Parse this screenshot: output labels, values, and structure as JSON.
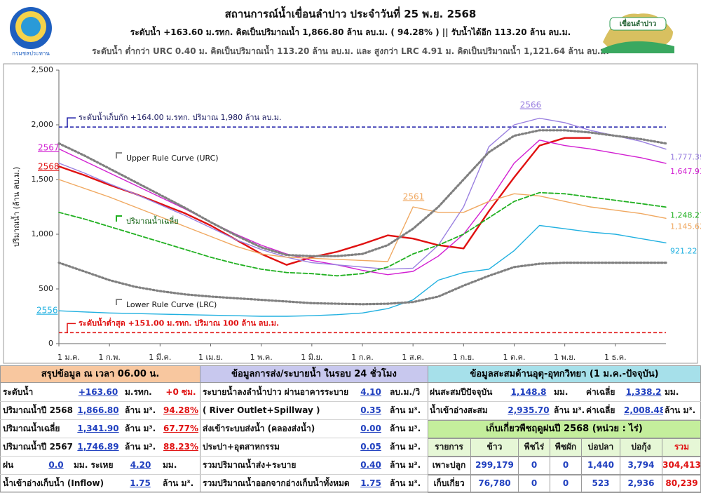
{
  "header": {
    "title": "สถานการณ์น้ำเขื่อนลำปาว ประจำวันที่ 25 พ.ย. 2568",
    "line1": "ระดับน้ำ +163.60 ม.รทก.  คิดเป็นปริมาณน้ำ 1,866.80 ล้าน ลบ.ม. ( 94.28% )  || รับน้ำได้อีก 113.20 ล้าน ลบ.ม.",
    "line2": "ระดับน้ำ ต่ำกว่า URC 0.40 ม. คิดเป็นปริมาณน้ำ 113.20 ล้าน ลบ.ม. และ สูงกว่า LRC 4.91 ม. คิดเป็นปริมาณน้ำ 1,121.64 ล้าน ลบ.ม.",
    "logo_left": "กรมชลประทาน",
    "logo_right": "เขื่อนลำปาว"
  },
  "chart_data": {
    "type": "line",
    "ylabel": "ปริมาณน้ำ (ล้าน ลบ.ม.)",
    "categories": [
      "1 ม.ค.",
      null,
      "1 ก.พ.",
      null,
      "1 มี.ค.",
      null,
      "1 เม.ย.",
      null,
      "1 พ.ค.",
      null,
      "1 มิ.ย.",
      null,
      "1 ก.ค.",
      null,
      "1 ส.ค.",
      null,
      "1 ก.ย.",
      null,
      "1 ต.ค.",
      null,
      "1 พ.ย.",
      null,
      "1 ธ.ค.",
      null,
      null
    ],
    "ylim": [
      0,
      2500
    ],
    "yticks": [
      0,
      500,
      {
        "value": 1000,
        "label": "1,000"
      },
      {
        "value": 1500,
        "label": "1,500"
      },
      {
        "value": 2000,
        "label": "2,000"
      },
      {
        "value": 2500,
        "label": "2,500"
      }
    ],
    "ref_lines": [
      {
        "label": "ระดับน้ำเก็บกัก +164.00 ม.รทก. ปริมาณ 1,980 ล้าน ลบ.ม.",
        "value": 1980,
        "color": "#1a1aa8"
      },
      {
        "label": "ระดับน้ำต่ำสุด +151.00 ม.รทก. ปริมาณ 100 ล้าน ลบ.ม.",
        "value": 100,
        "color": "#e01010"
      }
    ],
    "series": [
      {
        "name": "2568",
        "color": "#e01010",
        "style": "solid",
        "values": [
          1620,
          1540,
          1450,
          1370,
          1280,
          1190,
          1080,
          950,
          820,
          720,
          790,
          840,
          910,
          990,
          960,
          900,
          870,
          1210,
          1520,
          1810,
          1880,
          1880,
          null,
          null,
          null
        ]
      },
      {
        "name": "2567",
        "color": "#d21fd2",
        "style": "solid",
        "end_label": "1,647.93",
        "values": [
          1780,
          1670,
          1560,
          1450,
          1340,
          1230,
          1110,
          1000,
          900,
          820,
          760,
          720,
          670,
          630,
          660,
          800,
          1000,
          1300,
          1650,
          1860,
          1810,
          1780,
          1740,
          1700,
          1647.93
        ]
      },
      {
        "name": "2566",
        "color": "#9a80e0",
        "style": "solid",
        "end_label": "1,777.39",
        "values": [
          1650,
          1560,
          1460,
          1370,
          1270,
          1170,
          1060,
          950,
          860,
          790,
          740,
          720,
          700,
          680,
          690,
          900,
          1250,
          1800,
          2000,
          2060,
          2020,
          1950,
          1900,
          1850,
          1777.39
        ]
      },
      {
        "name": "2561",
        "color": "#f0a860",
        "style": "solid",
        "end_label": "1,145.62",
        "values": [
          1500,
          1420,
          1340,
          1250,
          1160,
          1070,
          980,
          890,
          820,
          790,
          780,
          770,
          760,
          750,
          1250,
          1200,
          1200,
          1300,
          1370,
          1350,
          1300,
          1250,
          1220,
          1190,
          1145.62
        ]
      },
      {
        "name": "2556",
        "color": "#20b0e0",
        "style": "solid",
        "end_label": "921.22",
        "values": [
          300,
          290,
          280,
          275,
          270,
          265,
          260,
          255,
          250,
          250,
          255,
          265,
          280,
          320,
          400,
          580,
          650,
          680,
          850,
          1080,
          1050,
          1020,
          1000,
          960,
          921.22
        ]
      },
      {
        "name": "ปริมาณน้ำเฉลี่ย",
        "color": "#20b020",
        "style": "dashed",
        "end_label": "1,248.27",
        "values": [
          1200,
          1140,
          1070,
          1000,
          930,
          860,
          790,
          730,
          680,
          650,
          640,
          620,
          640,
          700,
          820,
          900,
          1000,
          1150,
          1300,
          1380,
          1370,
          1340,
          1310,
          1280,
          1248.27
        ]
      },
      {
        "name": "Upper Rule Curve (URC)",
        "color": "#808080",
        "style": "dotted",
        "values": [
          1830,
          1720,
          1600,
          1480,
          1360,
          1240,
          1110,
          990,
          880,
          810,
          800,
          800,
          820,
          900,
          1050,
          1250,
          1500,
          1750,
          1900,
          1950,
          1950,
          1930,
          1900,
          1870,
          1830
        ]
      },
      {
        "name": "Lower Rule Curve (LRC)",
        "color": "#808080",
        "style": "dotted",
        "values": [
          740,
          660,
          580,
          520,
          480,
          450,
          430,
          415,
          400,
          385,
          370,
          365,
          360,
          365,
          380,
          430,
          530,
          620,
          700,
          730,
          740,
          740,
          740,
          740,
          740
        ]
      }
    ]
  },
  "tables": {
    "summary": {
      "title": "สรุปข้อมูล ณ เวลา 06.00 น.",
      "rows": [
        [
          "ระดับน้ำ",
          "+163.60",
          "ม.รทก.",
          "+0 ซม."
        ],
        [
          "ปริมาณน้ำปี 2568",
          "1,866.80",
          "ล้าน ม³.",
          "94.28%"
        ],
        [
          "ปริมาณน้ำเฉลี่ย",
          "1,341.90",
          "ล้าน ม³.",
          "67.77%"
        ],
        [
          "ปริมาณน้ำปี 2567",
          "1,746.89",
          "ล้าน ม³.",
          "88.23%"
        ],
        [
          "ฝน",
          "0.0",
          "มม. ระเหย",
          "4.20",
          "มม."
        ],
        [
          "น้ำเข้าอ่างเก็บน้ำ (Inflow)",
          "1.75",
          "ล้าน ม³."
        ]
      ]
    },
    "release": {
      "title": "ข้อมูลการส่ง/ระบายน้ำ ในรอบ 24 ชั่วโมง",
      "rows": [
        [
          "ระบายน้ำลงลำน้ำปาว ผ่านอาคารระบาย",
          "4.10",
          "ลบ.ม./วิ"
        ],
        [
          "( River Outlet+Spillway )",
          "0.35",
          "ล้าน ม³."
        ],
        [
          "ส่งเข้าระบบส่งน้ำ (คลองส่งน้ำ)",
          "0.00",
          "ล้าน ม³."
        ],
        [
          "ประปา+อุตสาหกรรม",
          "0.05",
          "ล้าน ม³."
        ],
        [
          "รวมปริมาณน้ำส่ง+ระบาย",
          "0.40",
          "ล้าน ม³."
        ],
        [
          "รวมปริมาณน้ำออกจากอ่างเก็บน้ำทั้งหมด",
          "1.75",
          "ล้าน ม³."
        ]
      ]
    },
    "hydro": {
      "title": "ข้อมูลสะสมด้านอุตุ-อุทกวิทยา (1 ม.ค.-ปัจจุบัน)",
      "rows": [
        [
          "ฝนสะสมปีปัจจุบัน",
          "1,148.8",
          "มม.",
          "ค่าเฉลี่ย",
          "1,338.2",
          "มม."
        ],
        [
          "น้ำเข้าอ่างสะสม",
          "2,935.70",
          "ล้าน ม³.",
          "ค่าเฉลี่ย",
          "2,008.48",
          "ล้าน ม³."
        ]
      ]
    },
    "crop": {
      "title": "เก็บเกี่ยวพืชฤดูฝนปี 2568 (หน่วย : ไร่)",
      "header": [
        "รายการ",
        "ข้าว",
        "พืชไร่",
        "พืชผัก",
        "บ่อปลา",
        "บ่อกุ้ง",
        "รวม"
      ],
      "rows": [
        [
          "เพาะปลูก",
          "299,179",
          "0",
          "0",
          "1,440",
          "3,794",
          "304,413"
        ],
        [
          "เก็บเกี่ยว",
          "76,780",
          "0",
          "0",
          "523",
          "2,936",
          "80,239"
        ]
      ]
    }
  }
}
